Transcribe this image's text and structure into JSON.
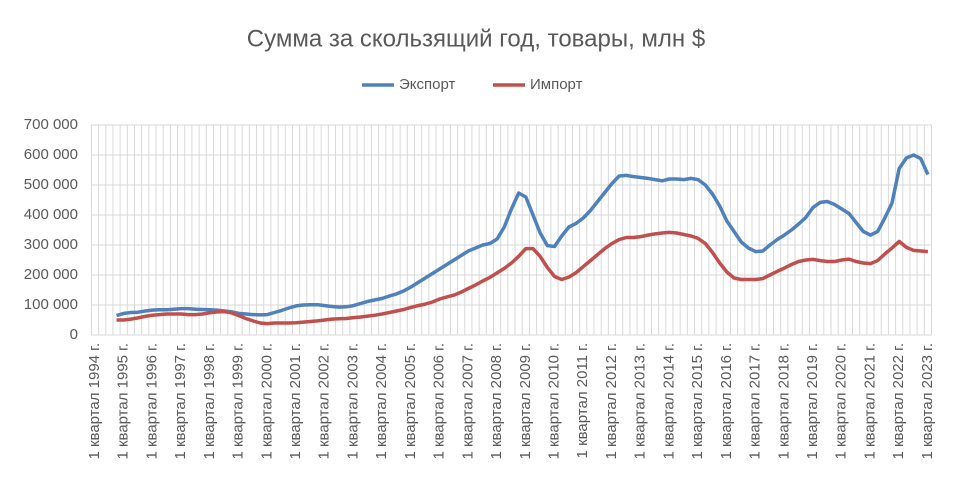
{
  "chart_data": {
    "type": "line",
    "title": "Сумма за скользящий год, товары, млн $",
    "categories": [
      "1 квартал 1994 г.",
      null,
      null,
      null,
      "1 квартал 1995 г.",
      null,
      null,
      null,
      "1 квартал 1996 г.",
      null,
      null,
      null,
      "1 квартал 1997 г.",
      null,
      null,
      null,
      "1 квартал 1998 г.",
      null,
      null,
      null,
      "1 квартал 1999 г.",
      null,
      null,
      null,
      "1 квартал 2000 г.",
      null,
      null,
      null,
      "1 квартал 2001 г.",
      null,
      null,
      null,
      "1 квартал 2002 г.",
      null,
      null,
      null,
      "1 квартал 2003 г.",
      null,
      null,
      null,
      "1 квартал 2004 г.",
      null,
      null,
      null,
      "1 квартал 2005 г.",
      null,
      null,
      null,
      "1 квартал 2006 г.",
      null,
      null,
      null,
      "1 квартал 2007 г.",
      null,
      null,
      null,
      "1 квартал 2008 г.",
      null,
      null,
      null,
      "1 квартал 2009 г.",
      null,
      null,
      null,
      "1 квартал 2010 г.",
      null,
      null,
      null,
      "1 квартал 2011 г.",
      null,
      null,
      null,
      "1 квартал 2012 г.",
      null,
      null,
      null,
      "1 квартал 2013 г.",
      null,
      null,
      null,
      "1 квартал 2014 г.",
      null,
      null,
      null,
      "1 квартал 2015 г.",
      null,
      null,
      null,
      "1 квартал 2016 г.",
      null,
      null,
      null,
      "1 квартал 2017 г.",
      null,
      null,
      null,
      "1 квартал 2018 г.",
      null,
      null,
      null,
      "1 квартал 2019 г.",
      null,
      null,
      null,
      "1 квартал 2020 г.",
      null,
      null,
      null,
      "1 квартал 2021 г.",
      null,
      null,
      null,
      "1 квартал 2022 г.",
      null,
      null,
      null,
      "1 квартал 2023 г."
    ],
    "series": [
      {
        "name": "Экспорт",
        "color": "#4f81bd",
        "values": [
          null,
          null,
          null,
          65000,
          72000,
          75000,
          76000,
          80000,
          83000,
          84000,
          84000,
          86000,
          88000,
          88000,
          86000,
          85000,
          84000,
          83000,
          80000,
          77000,
          72000,
          70000,
          68000,
          67000,
          68000,
          75000,
          82000,
          90000,
          97000,
          100000,
          101000,
          101000,
          98000,
          95000,
          93000,
          94000,
          98000,
          105000,
          112000,
          117000,
          122000,
          130000,
          137000,
          147000,
          160000,
          175000,
          190000,
          205000,
          220000,
          235000,
          250000,
          265000,
          280000,
          290000,
          300000,
          305000,
          320000,
          360000,
          420000,
          473000,
          460000,
          400000,
          340000,
          298000,
          295000,
          330000,
          360000,
          372000,
          390000,
          415000,
          445000,
          475000,
          505000,
          530000,
          532000,
          528000,
          525000,
          522000,
          518000,
          514000,
          520000,
          520000,
          518000,
          522000,
          518000,
          500000,
          470000,
          430000,
          380000,
          345000,
          310000,
          290000,
          278000,
          280000,
          300000,
          318000,
          333000,
          350000,
          370000,
          392000,
          425000,
          442000,
          445000,
          435000,
          420000,
          405000,
          375000,
          345000,
          333000,
          345000,
          390000,
          440000,
          555000,
          590000,
          600000,
          588000,
          535000
        ]
      },
      {
        "name": "Импорт",
        "color": "#c0504d",
        "values": [
          null,
          null,
          null,
          50000,
          50000,
          53000,
          57000,
          62000,
          66000,
          68000,
          70000,
          70000,
          70000,
          68000,
          68000,
          70000,
          74000,
          77000,
          78000,
          74000,
          65000,
          55000,
          47000,
          40000,
          38000,
          40000,
          40000,
          40000,
          41000,
          43000,
          45000,
          47000,
          50000,
          53000,
          54000,
          55000,
          58000,
          60000,
          63000,
          66000,
          70000,
          75000,
          80000,
          85000,
          92000,
          98000,
          103000,
          110000,
          120000,
          127000,
          133000,
          143000,
          155000,
          167000,
          180000,
          192000,
          207000,
          222000,
          240000,
          262000,
          288000,
          288000,
          262000,
          225000,
          195000,
          185000,
          193000,
          208000,
          228000,
          248000,
          268000,
          288000,
          305000,
          318000,
          325000,
          325000,
          328000,
          333000,
          337000,
          340000,
          342000,
          340000,
          335000,
          330000,
          322000,
          305000,
          275000,
          240000,
          210000,
          190000,
          185000,
          185000,
          185000,
          188000,
          200000,
          212000,
          223000,
          235000,
          245000,
          250000,
          252000,
          248000,
          245000,
          245000,
          250000,
          253000,
          245000,
          240000,
          238000,
          248000,
          270000,
          290000,
          312000,
          292000,
          282000,
          280000,
          278000
        ]
      }
    ],
    "ylim": [
      0,
      700000
    ],
    "yticks": [
      0,
      {
        "value": 100000,
        "label": "100 000"
      },
      {
        "value": 200000,
        "label": "200 000"
      },
      {
        "value": 300000,
        "label": "300 000"
      },
      {
        "value": 400000,
        "label": "400 000"
      },
      {
        "value": 500000,
        "label": "500 000"
      },
      {
        "value": 600000,
        "label": "600 000"
      },
      {
        "value": 700000,
        "label": "700 000"
      }
    ],
    "grid": true,
    "legend": "top"
  }
}
